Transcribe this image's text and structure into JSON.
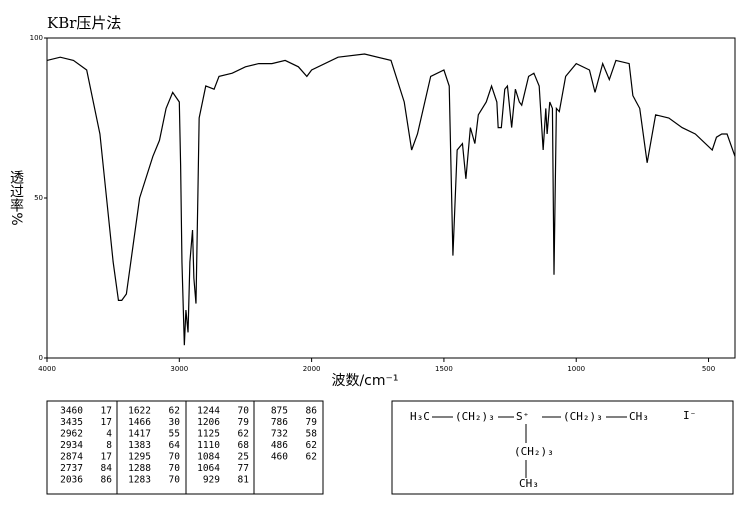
{
  "chart_data": {
    "type": "line",
    "title": "KBr压片法",
    "xlabel": "波数/cm⁻¹",
    "ylabel": "透过率%",
    "xlim": [
      4000,
      400
    ],
    "x_scale_change": {
      "at": 2000,
      "factor": 2
    },
    "xticks": [
      4000,
      3000,
      2000,
      1500,
      1000,
      500
    ],
    "ylim": [
      0,
      100
    ],
    "yticks": [
      0,
      50,
      100
    ],
    "series": [
      {
        "color": "#000000",
        "x": [
          4000,
          3900,
          3800,
          3700,
          3600,
          3550,
          3500,
          3460,
          3435,
          3400,
          3350,
          3300,
          3200,
          3150,
          3100,
          3050,
          3000,
          2990,
          2980,
          2962,
          2950,
          2934,
          2920,
          2900,
          2890,
          2874,
          2860,
          2850,
          2800,
          2737,
          2700,
          2600,
          2500,
          2400,
          2300,
          2200,
          2100,
          2036,
          2000,
          1900,
          1800,
          1700,
          1650,
          1622,
          1600,
          1550,
          1500,
          1480,
          1466,
          1450,
          1430,
          1417,
          1400,
          1383,
          1370,
          1340,
          1320,
          1300,
          1295,
          1288,
          1283,
          1270,
          1260,
          1244,
          1230,
          1215,
          1206,
          1180,
          1160,
          1140,
          1125,
          1115,
          1110,
          1100,
          1090,
          1084,
          1075,
          1064,
          1040,
          1000,
          950,
          929,
          900,
          875,
          850,
          800,
          786,
          760,
          732,
          700,
          650,
          600,
          550,
          486,
          470,
          450,
          430,
          400
        ],
        "values": [
          93,
          94,
          93,
          90,
          70,
          50,
          30,
          18,
          18,
          20,
          35,
          50,
          63,
          68,
          78,
          83,
          80,
          60,
          30,
          4,
          15,
          8,
          30,
          40,
          25,
          17,
          50,
          75,
          85,
          84,
          88,
          89,
          91,
          92,
          92,
          93,
          91,
          88,
          90,
          94,
          95,
          93,
          80,
          65,
          70,
          88,
          90,
          85,
          32,
          65,
          67,
          56,
          72,
          67,
          76,
          80,
          85,
          80,
          72,
          72,
          72,
          84,
          85,
          72,
          84,
          80,
          79,
          88,
          89,
          85,
          65,
          78,
          70,
          80,
          78,
          26,
          78,
          77,
          88,
          92,
          90,
          83,
          92,
          87,
          93,
          92,
          82,
          78,
          61,
          76,
          75,
          72,
          70,
          65,
          69,
          70,
          70,
          63
        ]
      }
    ]
  },
  "peak_table": {
    "columns": [
      [
        [
          3460,
          17
        ],
        [
          3435,
          17
        ],
        [
          2962,
          4
        ],
        [
          2934,
          8
        ],
        [
          2874,
          17
        ],
        [
          2737,
          84
        ],
        [
          2036,
          86
        ]
      ],
      [
        [
          1622,
          62
        ],
        [
          1466,
          30
        ],
        [
          1417,
          55
        ],
        [
          1383,
          64
        ],
        [
          1295,
          70
        ],
        [
          1288,
          70
        ],
        [
          1283,
          70
        ]
      ],
      [
        [
          1244,
          70
        ],
        [
          1206,
          79
        ],
        [
          1125,
          62
        ],
        [
          1110,
          68
        ],
        [
          1084,
          25
        ],
        [
          1064,
          77
        ],
        [
          929,
          81
        ]
      ],
      [
        [
          875,
          86
        ],
        [
          786,
          79
        ],
        [
          732,
          58
        ],
        [
          486,
          62
        ],
        [
          460,
          62
        ]
      ]
    ]
  },
  "structure": {
    "labels": [
      "H₃C",
      "(CH₂)₃",
      "S⁺",
      "(CH₂)₃",
      "CH₃",
      "I⁻",
      "(CH₂)₃",
      "CH₃"
    ]
  }
}
